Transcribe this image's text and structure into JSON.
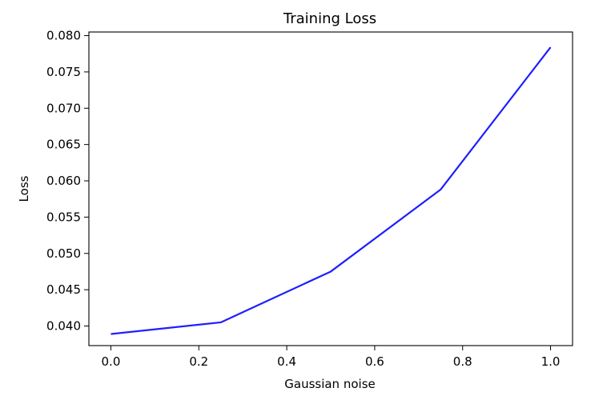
{
  "chart_data": {
    "type": "line",
    "title": "Training Loss",
    "xlabel": "Gaussian noise",
    "ylabel": "Loss",
    "xlim": [
      -0.05,
      1.05
    ],
    "ylim": [
      0.0373,
      0.0805
    ],
    "xticks": [
      0.0,
      0.2,
      0.4,
      0.6,
      0.8,
      1.0
    ],
    "xtick_labels": [
      "0.0",
      "0.2",
      "0.4",
      "0.6",
      "0.8",
      "1.0"
    ],
    "yticks": [
      0.04,
      0.045,
      0.05,
      0.055,
      0.06,
      0.065,
      0.07,
      0.075,
      0.08
    ],
    "ytick_labels": [
      "0.040",
      "0.045",
      "0.050",
      "0.055",
      "0.060",
      "0.065",
      "0.070",
      "0.075",
      "0.080"
    ],
    "grid": false,
    "series": [
      {
        "color": "#1f1fff",
        "x": [
          0.0,
          0.25,
          0.5,
          0.75,
          1.0
        ],
        "y": [
          0.0389,
          0.0405,
          0.0475,
          0.0588,
          0.0784
        ]
      }
    ]
  }
}
